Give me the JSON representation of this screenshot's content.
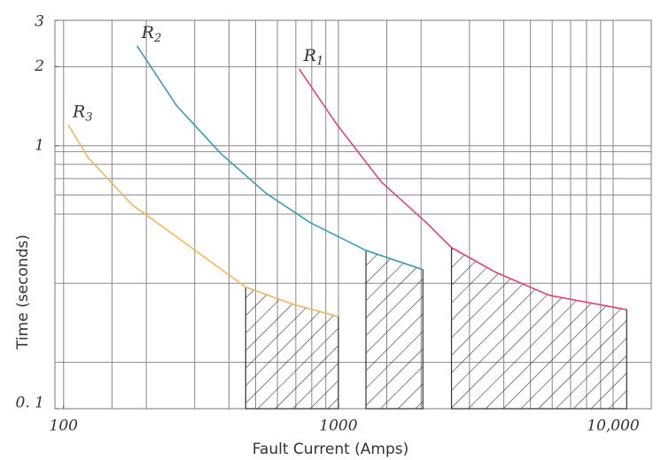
{
  "chart_data": {
    "type": "line",
    "x_label": "Fault Current (Amps)",
    "y_label": "Time (seconds)",
    "log_x": true,
    "log_y": true,
    "grid": true,
    "xlim": [
      93,
      13760
    ],
    "ylim": [
      0.1,
      3
    ],
    "xticks": [
      100,
      1000,
      {
        "value": 10000,
        "label": "10,000"
      }
    ],
    "yticks": [
      {
        "value": 0.1,
        "label": "0. 1"
      },
      1,
      2,
      3
    ],
    "xgrid": [
      100,
      150,
      200,
      300,
      400,
      500,
      600,
      700,
      800,
      900,
      1000,
      1500,
      2000,
      3000,
      4000,
      5000,
      6000,
      7000,
      8000,
      9000,
      10000
    ],
    "ygrid": [
      0.15,
      0.3,
      0.55,
      0.65,
      0.75,
      0.85,
      0.95,
      1,
      2
    ],
    "series": [
      {
        "name": "R1",
        "color": "#e0457b",
        "x": [
          720,
          985,
          1430,
          2090,
          2580,
          3740,
          5850,
          11200
        ],
        "values": [
          1.96,
          1.21,
          0.73,
          0.51,
          0.41,
          0.33,
          0.27,
          0.238
        ],
        "hatch": [
          2580,
          11200
        ]
      },
      {
        "name": "R2",
        "color": "#3a9db5",
        "x": [
          185,
          258,
          375,
          545,
          790,
          1260,
          2030
        ],
        "values": [
          2.4,
          1.42,
          0.93,
          0.66,
          0.51,
          0.4,
          0.338
        ],
        "hatch": [
          1260,
          2030
        ]
      },
      {
        "name": "R3",
        "color": "#f0b860",
        "x": [
          104,
          123,
          178,
          258,
          460,
          680,
          1000
        ],
        "values": [
          1.2,
          0.9,
          0.595,
          0.45,
          0.29,
          0.25,
          0.224
        ],
        "hatch": [
          460,
          1000
        ]
      }
    ]
  }
}
